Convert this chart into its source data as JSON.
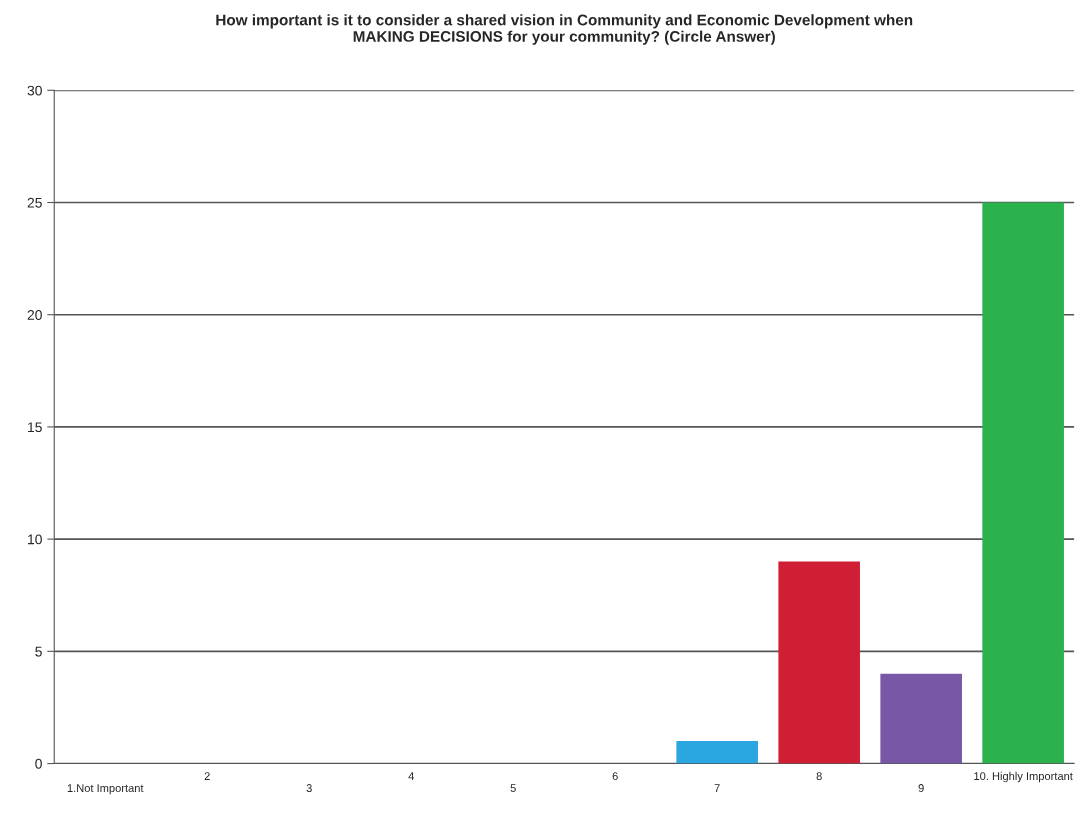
{
  "chart_data": {
    "type": "bar",
    "title": "How important is it to consider a shared vision in Community and Economic Development when\nMAKING DECISIONS for your community? (Circle Answer)",
    "categories": [
      "1.Not Important",
      "2",
      "3",
      "4",
      "5",
      "6",
      "7",
      "8",
      "9",
      "10. Highly Important"
    ],
    "values": [
      0,
      0,
      0,
      0,
      0,
      0,
      1,
      9,
      4,
      25
    ],
    "colors": [
      "#2aa7e0",
      "#2aa7e0",
      "#2aa7e0",
      "#2aa7e0",
      "#2aa7e0",
      "#2aa7e0",
      "#2aa7e0",
      "#d01f34",
      "#7757a6",
      "#2bb24c"
    ],
    "ylim": [
      0,
      30
    ],
    "yticks": [
      0,
      5,
      10,
      15,
      20,
      25,
      30
    ],
    "grid": "y"
  }
}
